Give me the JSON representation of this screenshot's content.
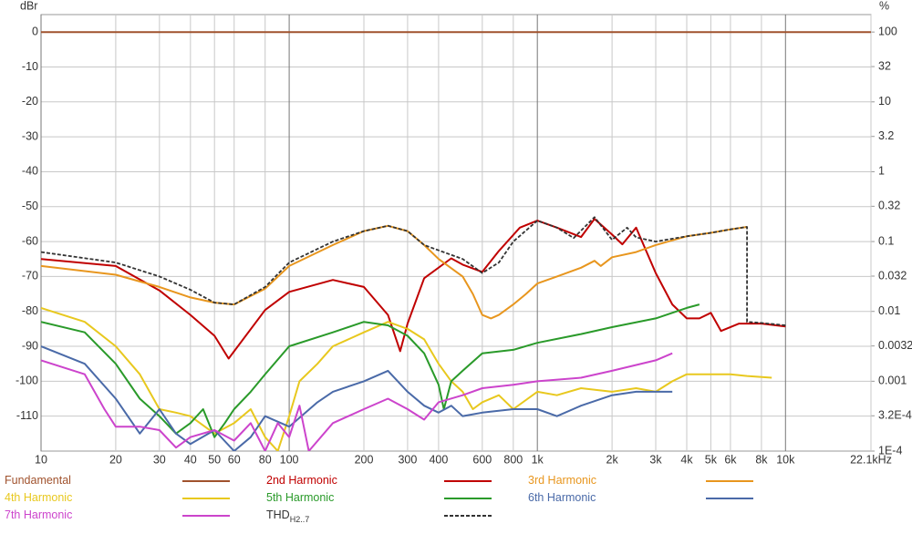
{
  "chart_data": {
    "type": "line",
    "xscale": "log",
    "yscale": "linear",
    "y2scale": "log",
    "grid": true,
    "ylabel": "dBr",
    "y2label": "%",
    "xlim": [
      10,
      22100
    ],
    "ylim": [
      -120,
      5
    ],
    "y2lim": [
      0.0001,
      177.8
    ],
    "xticks": [
      10,
      20,
      30,
      40,
      50,
      60,
      80,
      100,
      200,
      300,
      400,
      600,
      800,
      {
        "value": 1000,
        "label": "1k"
      },
      {
        "value": 2000,
        "label": "2k"
      },
      {
        "value": 3000,
        "label": "3k"
      },
      {
        "value": 4000,
        "label": "4k"
      },
      {
        "value": 5000,
        "label": "5k"
      },
      {
        "value": 6000,
        "label": "6k"
      },
      {
        "value": 8000,
        "label": "8k"
      },
      {
        "value": 10000,
        "label": "10k"
      },
      {
        "value": 22100,
        "label": "22.1kHz"
      }
    ],
    "yticks": [
      0,
      -10,
      -20,
      -30,
      -40,
      -50,
      -60,
      -70,
      -80,
      -90,
      -100,
      -110
    ],
    "y2ticks": [
      100,
      32,
      10,
      3.2,
      1,
      0.32,
      0.1,
      0.032,
      0.01,
      0.0032,
      0.001,
      {
        "value": 0.00032,
        "label": "3.2E-4"
      },
      {
        "value": 0.0001,
        "label": "1E-4"
      }
    ],
    "series": [
      {
        "name": "Fundamental",
        "color": "#a0522d",
        "x": [
          10,
          22100
        ],
        "values": [
          0,
          0
        ]
      },
      {
        "name": "2nd Harmonic",
        "color": "#c00000",
        "x": [
          10,
          20,
          30,
          40,
          50,
          57,
          80,
          100,
          150,
          200,
          250,
          280,
          300,
          350,
          450,
          500,
          600,
          700,
          850,
          1000,
          1200,
          1500,
          1700,
          2000,
          2200,
          2500,
          3000,
          3500,
          4000,
          4500,
          5000,
          5500,
          6500,
          8000,
          10000
        ],
        "values": [
          -65,
          -67,
          -74,
          -81,
          -87,
          -93.5,
          -79.6,
          -74.4,
          -71,
          -73,
          -81,
          -91.4,
          -83.5,
          -70.5,
          -64.8,
          -66.6,
          -68.7,
          -62.7,
          -56,
          -54,
          -56,
          -58.7,
          -53.5,
          -58,
          -60.8,
          -56,
          -69,
          -78,
          -82,
          -82,
          -80.4,
          -85.6,
          -83.5,
          -83.5,
          -84.3
        ]
      },
      {
        "name": "3rd Harmonic",
        "color": "#e8961e",
        "x": [
          10,
          20,
          30,
          40,
          50,
          60,
          80,
          100,
          150,
          200,
          250,
          300,
          350,
          400,
          500,
          550,
          600,
          650,
          700,
          800,
          900,
          1000,
          1200,
          1500,
          1700,
          1800,
          2000,
          2500,
          3000,
          4000,
          5000,
          6000,
          7000
        ],
        "values": [
          -67,
          -69.5,
          -73,
          -76,
          -77.5,
          -78,
          -73.5,
          -67,
          -61,
          -57,
          -55.5,
          -57,
          -61,
          -65,
          -70,
          -75,
          -81,
          -82,
          -81,
          -78,
          -75,
          -72,
          -70,
          -67.5,
          -65.5,
          -67,
          -64.5,
          -63,
          -61,
          -58.5,
          -57.5,
          -56.5,
          -55.8
        ]
      },
      {
        "name": "4th Harmonic",
        "color": "#e8c81e",
        "x": [
          10,
          15,
          20,
          25,
          30,
          35,
          40,
          50,
          60,
          70,
          80,
          90,
          100,
          110,
          130,
          150,
          200,
          250,
          300,
          350,
          400,
          450,
          500,
          550,
          600,
          700,
          800,
          1000,
          1200,
          1500,
          2000,
          2500,
          3000,
          3500,
          4000,
          5000,
          6000,
          7000,
          8800
        ],
        "values": [
          -79,
          -83,
          -90,
          -98,
          -108,
          -109,
          -110,
          -115,
          -112,
          -108,
          -116,
          -120,
          -110,
          -100,
          -95,
          -90,
          -86,
          -83,
          -85,
          -88,
          -95,
          -100,
          -103,
          -108,
          -106,
          -104,
          -108,
          -103,
          -104,
          -102,
          -103,
          -102,
          -103,
          -100,
          -98,
          -98,
          -98,
          -98.5,
          -99
        ]
      },
      {
        "name": "5th Harmonic",
        "color": "#2a9a2a",
        "x": [
          10,
          15,
          20,
          25,
          30,
          35,
          40,
          45,
          50,
          55,
          60,
          70,
          80,
          100,
          150,
          200,
          250,
          300,
          350,
          400,
          420,
          450,
          500,
          600,
          800,
          1000,
          1500,
          2000,
          3000,
          4000,
          4500
        ],
        "values": [
          -83,
          -86,
          -95,
          -105,
          -110,
          -115,
          -112,
          -108,
          -116,
          -112,
          -108,
          -103,
          -98,
          -90,
          -86,
          -83,
          -84,
          -87,
          -92,
          -101,
          -108,
          -100,
          -97,
          -92,
          -91,
          -89,
          -86.5,
          -84.5,
          -82,
          -79,
          -78
        ]
      },
      {
        "name": "6th Harmonic",
        "color": "#4a6aa8",
        "x": [
          10,
          15,
          20,
          25,
          30,
          35,
          40,
          50,
          60,
          70,
          80,
          100,
          130,
          150,
          200,
          250,
          300,
          350,
          400,
          450,
          500,
          600,
          800,
          1000,
          1200,
          1500,
          2000,
          2500,
          3000,
          3500
        ],
        "values": [
          -90,
          -95,
          -105,
          -115,
          -108,
          -115,
          -118,
          -114,
          -120,
          -116,
          -110,
          -113,
          -106,
          -103,
          -100,
          -97,
          -103,
          -107,
          -109,
          -107,
          -110,
          -109,
          -108,
          -108,
          -110,
          -107,
          -104,
          -103,
          -103,
          -103
        ]
      },
      {
        "name": "7th Harmonic",
        "color": "#cc44cc",
        "x": [
          10,
          15,
          18,
          20,
          25,
          30,
          35,
          40,
          50,
          60,
          70,
          80,
          90,
          100,
          110,
          120,
          150,
          200,
          250,
          300,
          350,
          400,
          500,
          600,
          800,
          1000,
          1500,
          2000,
          3000,
          3500
        ],
        "values": [
          -94,
          -98,
          -108,
          -113,
          -113,
          -114,
          -119,
          -116,
          -114,
          -117,
          -112,
          -120,
          -112,
          -116,
          -107,
          -120,
          -112,
          -108,
          -105,
          -108,
          -111,
          -106,
          -104,
          -102,
          -101,
          -100,
          -99,
          -97,
          -94,
          -92
        ]
      },
      {
        "name": "THD",
        "subscript": "H2..7",
        "color": "#333333",
        "dashed": true,
        "x": [
          10,
          20,
          30,
          40,
          50,
          60,
          80,
          100,
          150,
          200,
          250,
          300,
          350,
          400,
          500,
          600,
          700,
          800,
          1000,
          1200,
          1400,
          1700,
          2000,
          2300,
          2500,
          3000,
          4000,
          5000,
          6000,
          7000,
          7000,
          8000,
          10000
        ],
        "values": [
          -63,
          -66,
          -70,
          -73.8,
          -77.5,
          -78,
          -73,
          -66,
          -60,
          -57,
          -55.5,
          -57,
          -61,
          -62.5,
          -65,
          -69,
          -66,
          -60,
          -54,
          -56,
          -59,
          -53,
          -59.5,
          -56,
          -58.8,
          -60,
          -58.5,
          -57.5,
          -56.5,
          -55.8,
          -83,
          -83.3,
          -84
        ]
      }
    ]
  }
}
